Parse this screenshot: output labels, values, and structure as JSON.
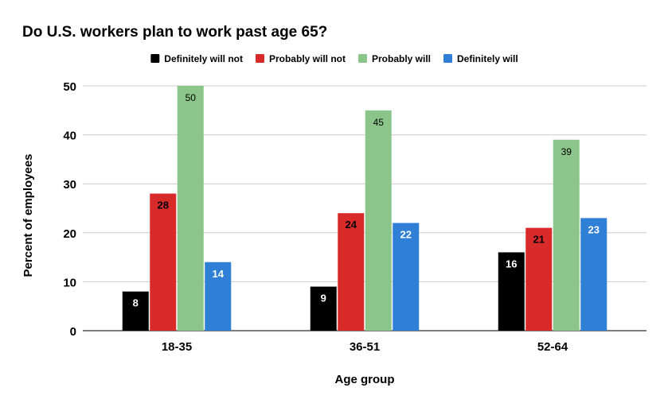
{
  "chart_data": {
    "type": "bar",
    "title": "Do U.S. workers plan to work past age 65?",
    "xlabel": "Age group",
    "ylabel": "Percent of employees",
    "categories": [
      "18-35",
      "36-51",
      "52-64"
    ],
    "ylim": [
      0,
      50
    ],
    "yticks": [
      0,
      10,
      20,
      30,
      40,
      50
    ],
    "grid": true,
    "legend_position": "top",
    "series": [
      {
        "name": "Definitely will not",
        "color": "#000000",
        "label_color": "#ffffff",
        "values": [
          8,
          9,
          16
        ]
      },
      {
        "name": "Probably will not",
        "color": "#d92a2a",
        "label_color": "#000000",
        "values": [
          28,
          24,
          21
        ]
      },
      {
        "name": "Probably will",
        "color": "#8bc58a",
        "label_color": "#000000",
        "values": [
          50,
          45,
          39
        ]
      },
      {
        "name": "Definitely will",
        "color": "#2f7fd6",
        "label_color": "#ffffff",
        "values": [
          14,
          22,
          23
        ]
      }
    ]
  }
}
